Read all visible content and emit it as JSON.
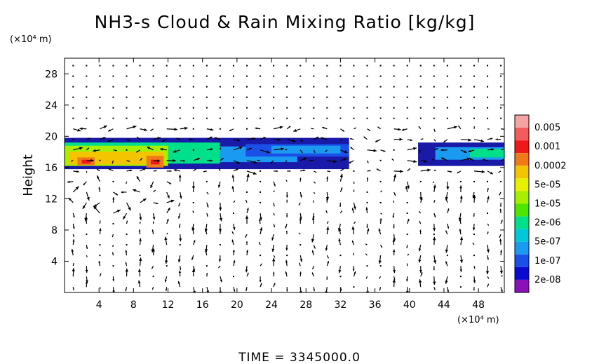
{
  "chart_data": {
    "type": "heatmap",
    "title": "NH3-s Cloud & Rain Mixing Ratio [kg/kg]",
    "ylabel": "Height",
    "x_unit": "(×10⁴ m)",
    "y_unit": "(×10⁴ m)",
    "xlim": [
      0,
      51
    ],
    "ylim": [
      0,
      30
    ],
    "x_ticks": [
      4,
      8,
      12,
      16,
      20,
      24,
      28,
      32,
      36,
      40,
      44,
      48
    ],
    "y_ticks": [
      4,
      8,
      12,
      16,
      20,
      24,
      28
    ],
    "colorbar": {
      "labels": [
        "0.005",
        "0.001",
        "0.0002",
        "5e-05",
        "1e-05",
        "2e-06",
        "5e-07",
        "1e-07",
        "2e-08"
      ],
      "colors": [
        "#f5a3a3",
        "#f25c5c",
        "#ee1a1a",
        "#f07a1a",
        "#f5c400",
        "#e6f000",
        "#a8ee00",
        "#4ee600",
        "#00e08a",
        "#00c8d8",
        "#1a9af0",
        "#1a50e8",
        "#0a0ad0",
        "#8a10b8"
      ]
    },
    "cloud_layer": {
      "x_range": [
        0,
        51
      ],
      "y_range": [
        15.5,
        20
      ],
      "gap": [
        33,
        38
      ]
    },
    "grid": false,
    "footer": "TIME  =  3345000.0"
  }
}
